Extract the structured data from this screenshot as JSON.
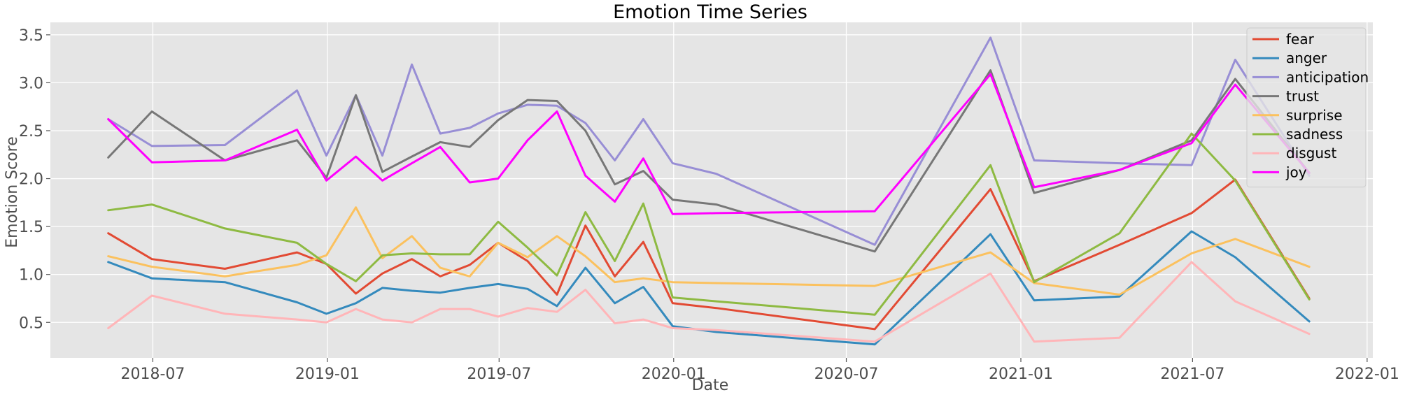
{
  "chart_data": {
    "type": "line",
    "title": "Emotion Time Series",
    "xlabel": "Date",
    "ylabel": "Emotion Score",
    "x": [
      "2018-05-15",
      "2018-06-30",
      "2018-09-15",
      "2018-11-30",
      "2018-12-31",
      "2019-01-31",
      "2019-02-28",
      "2019-03-31",
      "2019-04-30",
      "2019-05-31",
      "2019-06-30",
      "2019-07-31",
      "2019-08-31",
      "2019-09-30",
      "2019-10-31",
      "2019-11-30",
      "2019-12-31",
      "2020-02-15",
      "2020-07-31",
      "2020-11-30",
      "2021-01-15",
      "2021-04-15",
      "2021-06-30",
      "2021-08-15",
      "2021-11-01"
    ],
    "series": [
      {
        "name": "fear",
        "color": "#E24A33",
        "values": [
          1.43,
          1.16,
          1.06,
          1.23,
          1.11,
          0.8,
          1.01,
          1.16,
          0.98,
          1.1,
          1.33,
          1.14,
          0.79,
          1.51,
          0.98,
          1.34,
          0.7,
          0.65,
          0.43,
          1.89,
          0.93,
          1.31,
          1.64,
          1.99,
          0.75
        ]
      },
      {
        "name": "anger",
        "color": "#348ABD",
        "values": [
          1.13,
          0.96,
          0.92,
          0.71,
          0.59,
          0.7,
          0.86,
          0.83,
          0.81,
          0.86,
          0.9,
          0.85,
          0.67,
          1.07,
          0.7,
          0.87,
          0.46,
          0.4,
          0.27,
          1.42,
          0.73,
          0.77,
          1.45,
          1.18,
          0.51
        ]
      },
      {
        "name": "anticipation",
        "color": "#988ED5",
        "values": [
          2.62,
          2.34,
          2.35,
          2.92,
          2.24,
          2.87,
          2.24,
          3.19,
          2.47,
          2.53,
          2.68,
          2.77,
          2.76,
          2.58,
          2.19,
          2.62,
          2.16,
          2.05,
          1.31,
          3.47,
          2.19,
          2.16,
          2.14,
          3.24,
          2.03
        ]
      },
      {
        "name": "trust",
        "color": "#777777",
        "values": [
          2.22,
          2.7,
          2.19,
          2.4,
          2.01,
          2.87,
          2.07,
          2.23,
          2.38,
          2.33,
          2.61,
          2.82,
          2.81,
          2.5,
          1.94,
          2.08,
          1.78,
          1.73,
          1.24,
          3.13,
          1.85,
          2.09,
          2.4,
          3.04,
          2.06
        ]
      },
      {
        "name": "surprise",
        "color": "#FBC15E",
        "values": [
          1.19,
          1.08,
          0.98,
          1.1,
          1.2,
          1.7,
          1.17,
          1.4,
          1.07,
          0.98,
          1.33,
          1.18,
          1.4,
          1.19,
          0.92,
          0.96,
          0.92,
          0.91,
          0.88,
          1.23,
          0.91,
          0.79,
          1.22,
          1.37,
          1.08
        ]
      },
      {
        "name": "sadness",
        "color": "#8EBA42",
        "values": [
          1.67,
          1.73,
          1.48,
          1.33,
          1.11,
          0.93,
          1.2,
          1.22,
          1.21,
          1.21,
          1.55,
          1.28,
          0.99,
          1.65,
          1.14,
          1.74,
          0.76,
          0.72,
          0.58,
          2.14,
          0.92,
          1.43,
          2.47,
          1.98,
          0.74
        ]
      },
      {
        "name": "disgust",
        "color": "#FFB5B8",
        "values": [
          0.44,
          0.78,
          0.59,
          0.53,
          0.5,
          0.64,
          0.53,
          0.5,
          0.64,
          0.64,
          0.56,
          0.65,
          0.61,
          0.84,
          0.49,
          0.53,
          0.44,
          0.42,
          0.3,
          1.01,
          0.3,
          0.34,
          1.13,
          0.72,
          0.38
        ]
      },
      {
        "name": "joy",
        "color": "#FF00FF",
        "values": [
          2.62,
          2.17,
          2.19,
          2.51,
          1.98,
          2.23,
          1.98,
          2.16,
          2.33,
          1.96,
          2.0,
          2.4,
          2.7,
          2.03,
          1.76,
          2.21,
          1.63,
          1.64,
          1.66,
          3.09,
          1.91,
          2.09,
          2.37,
          2.98,
          2.06
        ]
      }
    ],
    "xlim": [
      "2018-03-15",
      "2022-01-07"
    ],
    "ylim": [
      0.13,
      3.63
    ],
    "yticks": [
      0.5,
      1.0,
      1.5,
      2.0,
      2.5,
      3.0,
      3.5
    ],
    "ytick_labels": [
      "0.5",
      "1.0",
      "1.5",
      "2.0",
      "2.5",
      "3.0",
      "3.5"
    ],
    "xticks": [
      "2018-07-01",
      "2019-01-01",
      "2019-07-01",
      "2020-01-01",
      "2020-07-01",
      "2021-01-01",
      "2021-07-01",
      "2022-01-01"
    ],
    "xtick_labels": [
      "2018-07",
      "2019-01",
      "2019-07",
      "2020-01",
      "2020-07",
      "2021-01",
      "2021-07",
      "2022-01"
    ],
    "grid": true,
    "legend_position": "top-right",
    "background_color": "#E5E5E5"
  }
}
